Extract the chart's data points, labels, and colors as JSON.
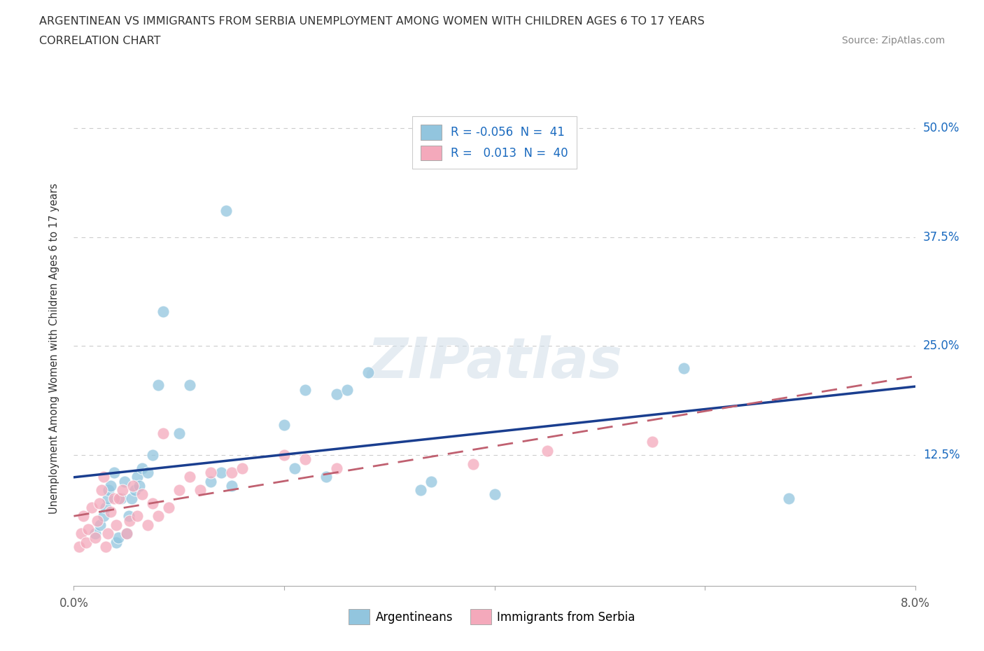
{
  "title_line1": "ARGENTINEAN VS IMMIGRANTS FROM SERBIA UNEMPLOYMENT AMONG WOMEN WITH CHILDREN AGES 6 TO 17 YEARS",
  "title_line2": "CORRELATION CHART",
  "source": "Source: ZipAtlas.com",
  "ylabel": "Unemployment Among Women with Children Ages 6 to 17 years",
  "xlim": [
    0.0,
    8.0
  ],
  "ylim": [
    -2.5,
    52.0
  ],
  "yticks": [
    0.0,
    12.5,
    25.0,
    37.5,
    50.0
  ],
  "ytick_labels": [
    "",
    "12.5%",
    "25.0%",
    "37.5%",
    "50.0%"
  ],
  "xticks": [
    0.0,
    2.0,
    4.0,
    6.0,
    8.0
  ],
  "watermark": "ZIPatlas",
  "legend_blue_R": "-0.056",
  "legend_blue_N": "41",
  "legend_pink_R": "0.013",
  "legend_pink_N": "40",
  "blue_color": "#92c5de",
  "pink_color": "#f4a9bb",
  "blue_line_color": "#1a3e8f",
  "pink_line_color": "#c06070",
  "argentinean_x": [
    0.2,
    0.25,
    0.28,
    0.3,
    0.32,
    0.33,
    0.35,
    0.38,
    0.4,
    0.42,
    0.45,
    0.48,
    0.5,
    0.52,
    0.55,
    0.58,
    0.6,
    0.62,
    0.65,
    0.7,
    0.75,
    0.8,
    0.85,
    1.0,
    1.1,
    1.3,
    1.4,
    1.45,
    1.5,
    2.0,
    2.1,
    2.2,
    2.4,
    2.5,
    2.6,
    2.8,
    3.3,
    3.4,
    4.0,
    5.8,
    6.8
  ],
  "argentinean_y": [
    3.5,
    4.5,
    5.5,
    6.5,
    7.5,
    8.5,
    9.0,
    10.5,
    2.5,
    3.0,
    7.5,
    9.5,
    3.5,
    5.5,
    7.5,
    8.5,
    10.0,
    9.0,
    11.0,
    10.5,
    12.5,
    20.5,
    29.0,
    15.0,
    20.5,
    9.5,
    10.5,
    40.5,
    9.0,
    16.0,
    11.0,
    20.0,
    10.0,
    19.5,
    20.0,
    22.0,
    8.5,
    9.5,
    8.0,
    22.5,
    7.5
  ],
  "serbia_x": [
    0.05,
    0.07,
    0.09,
    0.12,
    0.14,
    0.17,
    0.2,
    0.22,
    0.24,
    0.26,
    0.28,
    0.3,
    0.32,
    0.35,
    0.38,
    0.4,
    0.43,
    0.46,
    0.5,
    0.53,
    0.56,
    0.6,
    0.65,
    0.7,
    0.75,
    0.8,
    0.85,
    0.9,
    1.0,
    1.1,
    1.2,
    1.3,
    1.5,
    1.6,
    2.0,
    2.2,
    2.5,
    3.8,
    4.5,
    5.5
  ],
  "serbia_y": [
    2.0,
    3.5,
    5.5,
    2.5,
    4.0,
    6.5,
    3.0,
    5.0,
    7.0,
    8.5,
    10.0,
    2.0,
    3.5,
    6.0,
    7.5,
    4.5,
    7.5,
    8.5,
    3.5,
    5.0,
    9.0,
    5.5,
    8.0,
    4.5,
    7.0,
    5.5,
    15.0,
    6.5,
    8.5,
    10.0,
    8.5,
    10.5,
    10.5,
    11.0,
    12.5,
    12.0,
    11.0,
    11.5,
    13.0,
    14.0
  ],
  "grid_color": "#cccccc",
  "background_color": "#ffffff",
  "title_color": "#333333",
  "label_color": "#555555",
  "right_label_color": "#1a6abf",
  "source_color": "#888888"
}
